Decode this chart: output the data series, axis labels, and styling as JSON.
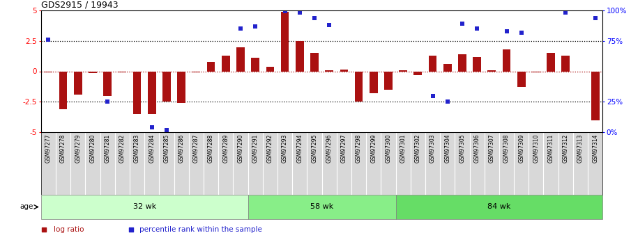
{
  "title": "GDS2915 / 19943",
  "samples": [
    "GSM97277",
    "GSM97278",
    "GSM97279",
    "GSM97280",
    "GSM97281",
    "GSM97282",
    "GSM97283",
    "GSM97284",
    "GSM97285",
    "GSM97286",
    "GSM97287",
    "GSM97288",
    "GSM97289",
    "GSM97290",
    "GSM97291",
    "GSM97292",
    "GSM97293",
    "GSM97294",
    "GSM97295",
    "GSM97296",
    "GSM97297",
    "GSM97298",
    "GSM97299",
    "GSM97300",
    "GSM97301",
    "GSM97302",
    "GSM97303",
    "GSM97304",
    "GSM97305",
    "GSM97306",
    "GSM97307",
    "GSM97308",
    "GSM97309",
    "GSM97310",
    "GSM97311",
    "GSM97312",
    "GSM97313",
    "GSM97314"
  ],
  "log_ratio": [
    -0.1,
    -3.1,
    -1.9,
    -0.15,
    -2.05,
    -0.1,
    -3.5,
    -3.5,
    -2.5,
    -2.6,
    -0.1,
    0.8,
    1.3,
    2.0,
    1.1,
    0.4,
    4.9,
    2.5,
    1.5,
    0.1,
    0.15,
    -2.5,
    -1.8,
    -1.5,
    0.1,
    -0.3,
    1.3,
    0.6,
    1.4,
    1.2,
    0.1,
    1.8,
    -1.3,
    -0.1,
    1.5,
    1.3,
    -0.05,
    -4.0
  ],
  "blue_dots_y": [
    2.6,
    null,
    null,
    null,
    -2.5,
    null,
    null,
    -4.6,
    -4.8,
    null,
    null,
    null,
    null,
    3.5,
    3.7,
    null,
    4.95,
    4.85,
    4.4,
    3.8,
    null,
    null,
    null,
    null,
    null,
    null,
    -2.0,
    -2.5,
    3.9,
    3.5,
    null,
    3.3,
    3.2,
    null,
    null,
    4.85,
    null,
    4.4
  ],
  "groups": [
    {
      "label": "32 wk",
      "start": 0,
      "end": 13,
      "color": "#ccffcc"
    },
    {
      "label": "58 wk",
      "start": 14,
      "end": 23,
      "color": "#88ee88"
    },
    {
      "label": "84 wk",
      "start": 24,
      "end": 37,
      "color": "#66dd66"
    }
  ],
  "bar_color": "#aa1111",
  "dot_color": "#2222cc",
  "ylim": [
    -5,
    5
  ],
  "yticks_left": [
    -5,
    -2.5,
    0,
    2.5,
    5
  ],
  "yticks_right_labels": [
    "0%",
    "25%",
    "75%",
    "100%"
  ],
  "yticks_right_pos": [
    -5,
    -2.5,
    2.5,
    5
  ],
  "hlines_dotted": [
    -2.5,
    2.5
  ],
  "hline_red": 0.0,
  "xlabel_bg": "#d8d8d8",
  "group_colors": [
    "#ccffcc",
    "#88ee88",
    "#66dd66"
  ]
}
